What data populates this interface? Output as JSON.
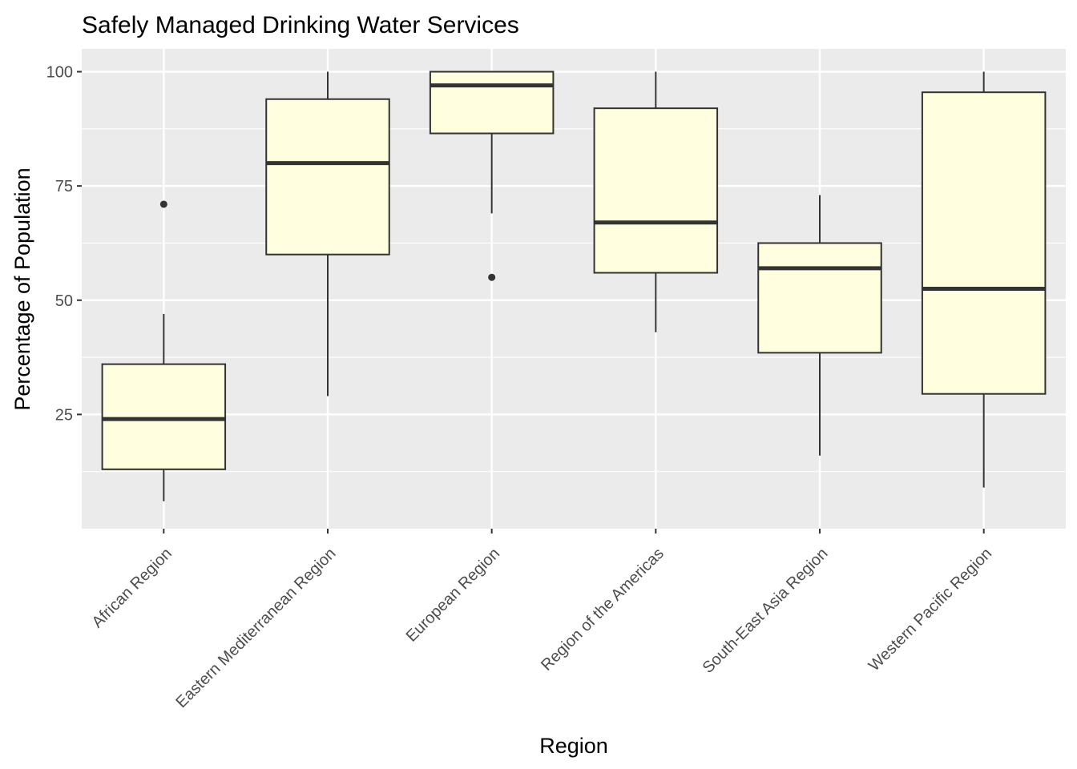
{
  "chart_data": {
    "type": "boxplot",
    "title": "Safely Managed Drinking Water Services",
    "xlabel": "Region",
    "ylabel": "Percentage of Population",
    "ylim": [
      0,
      105
    ],
    "yticks": [
      25,
      50,
      75,
      100
    ],
    "grid": true,
    "legend": "none",
    "colors": {
      "panel": "#ebebeb",
      "grid": "#ffffff",
      "box_fill": "#ffffe0",
      "box_stroke": "#333333",
      "tick_text": "#4d4d4d"
    },
    "categories": [
      "African Region",
      "Eastern Mediterranean Region",
      "European Region",
      "Region of the Americas",
      "South-East Asia Region",
      "Western Pacific Region"
    ],
    "boxes": [
      {
        "category": "African Region",
        "min": 6,
        "q1": 13,
        "median": 24,
        "q3": 36,
        "max": 47,
        "outliers": [
          71
        ]
      },
      {
        "category": "Eastern Mediterranean Region",
        "min": 29,
        "q1": 60,
        "median": 80,
        "q3": 94,
        "max": 100,
        "outliers": []
      },
      {
        "category": "European Region",
        "min": 69,
        "q1": 86.5,
        "median": 97,
        "q3": 100,
        "max": 100,
        "outliers": [
          55
        ]
      },
      {
        "category": "Region of the Americas",
        "min": 43,
        "q1": 56,
        "median": 67,
        "q3": 92,
        "max": 100,
        "outliers": []
      },
      {
        "category": "South-East Asia Region",
        "min": 16,
        "q1": 38.5,
        "median": 57,
        "q3": 62.5,
        "max": 73,
        "outliers": []
      },
      {
        "category": "Western Pacific Region",
        "min": 9,
        "q1": 29.5,
        "median": 52.5,
        "q3": 95.5,
        "max": 100,
        "outliers": []
      }
    ]
  }
}
